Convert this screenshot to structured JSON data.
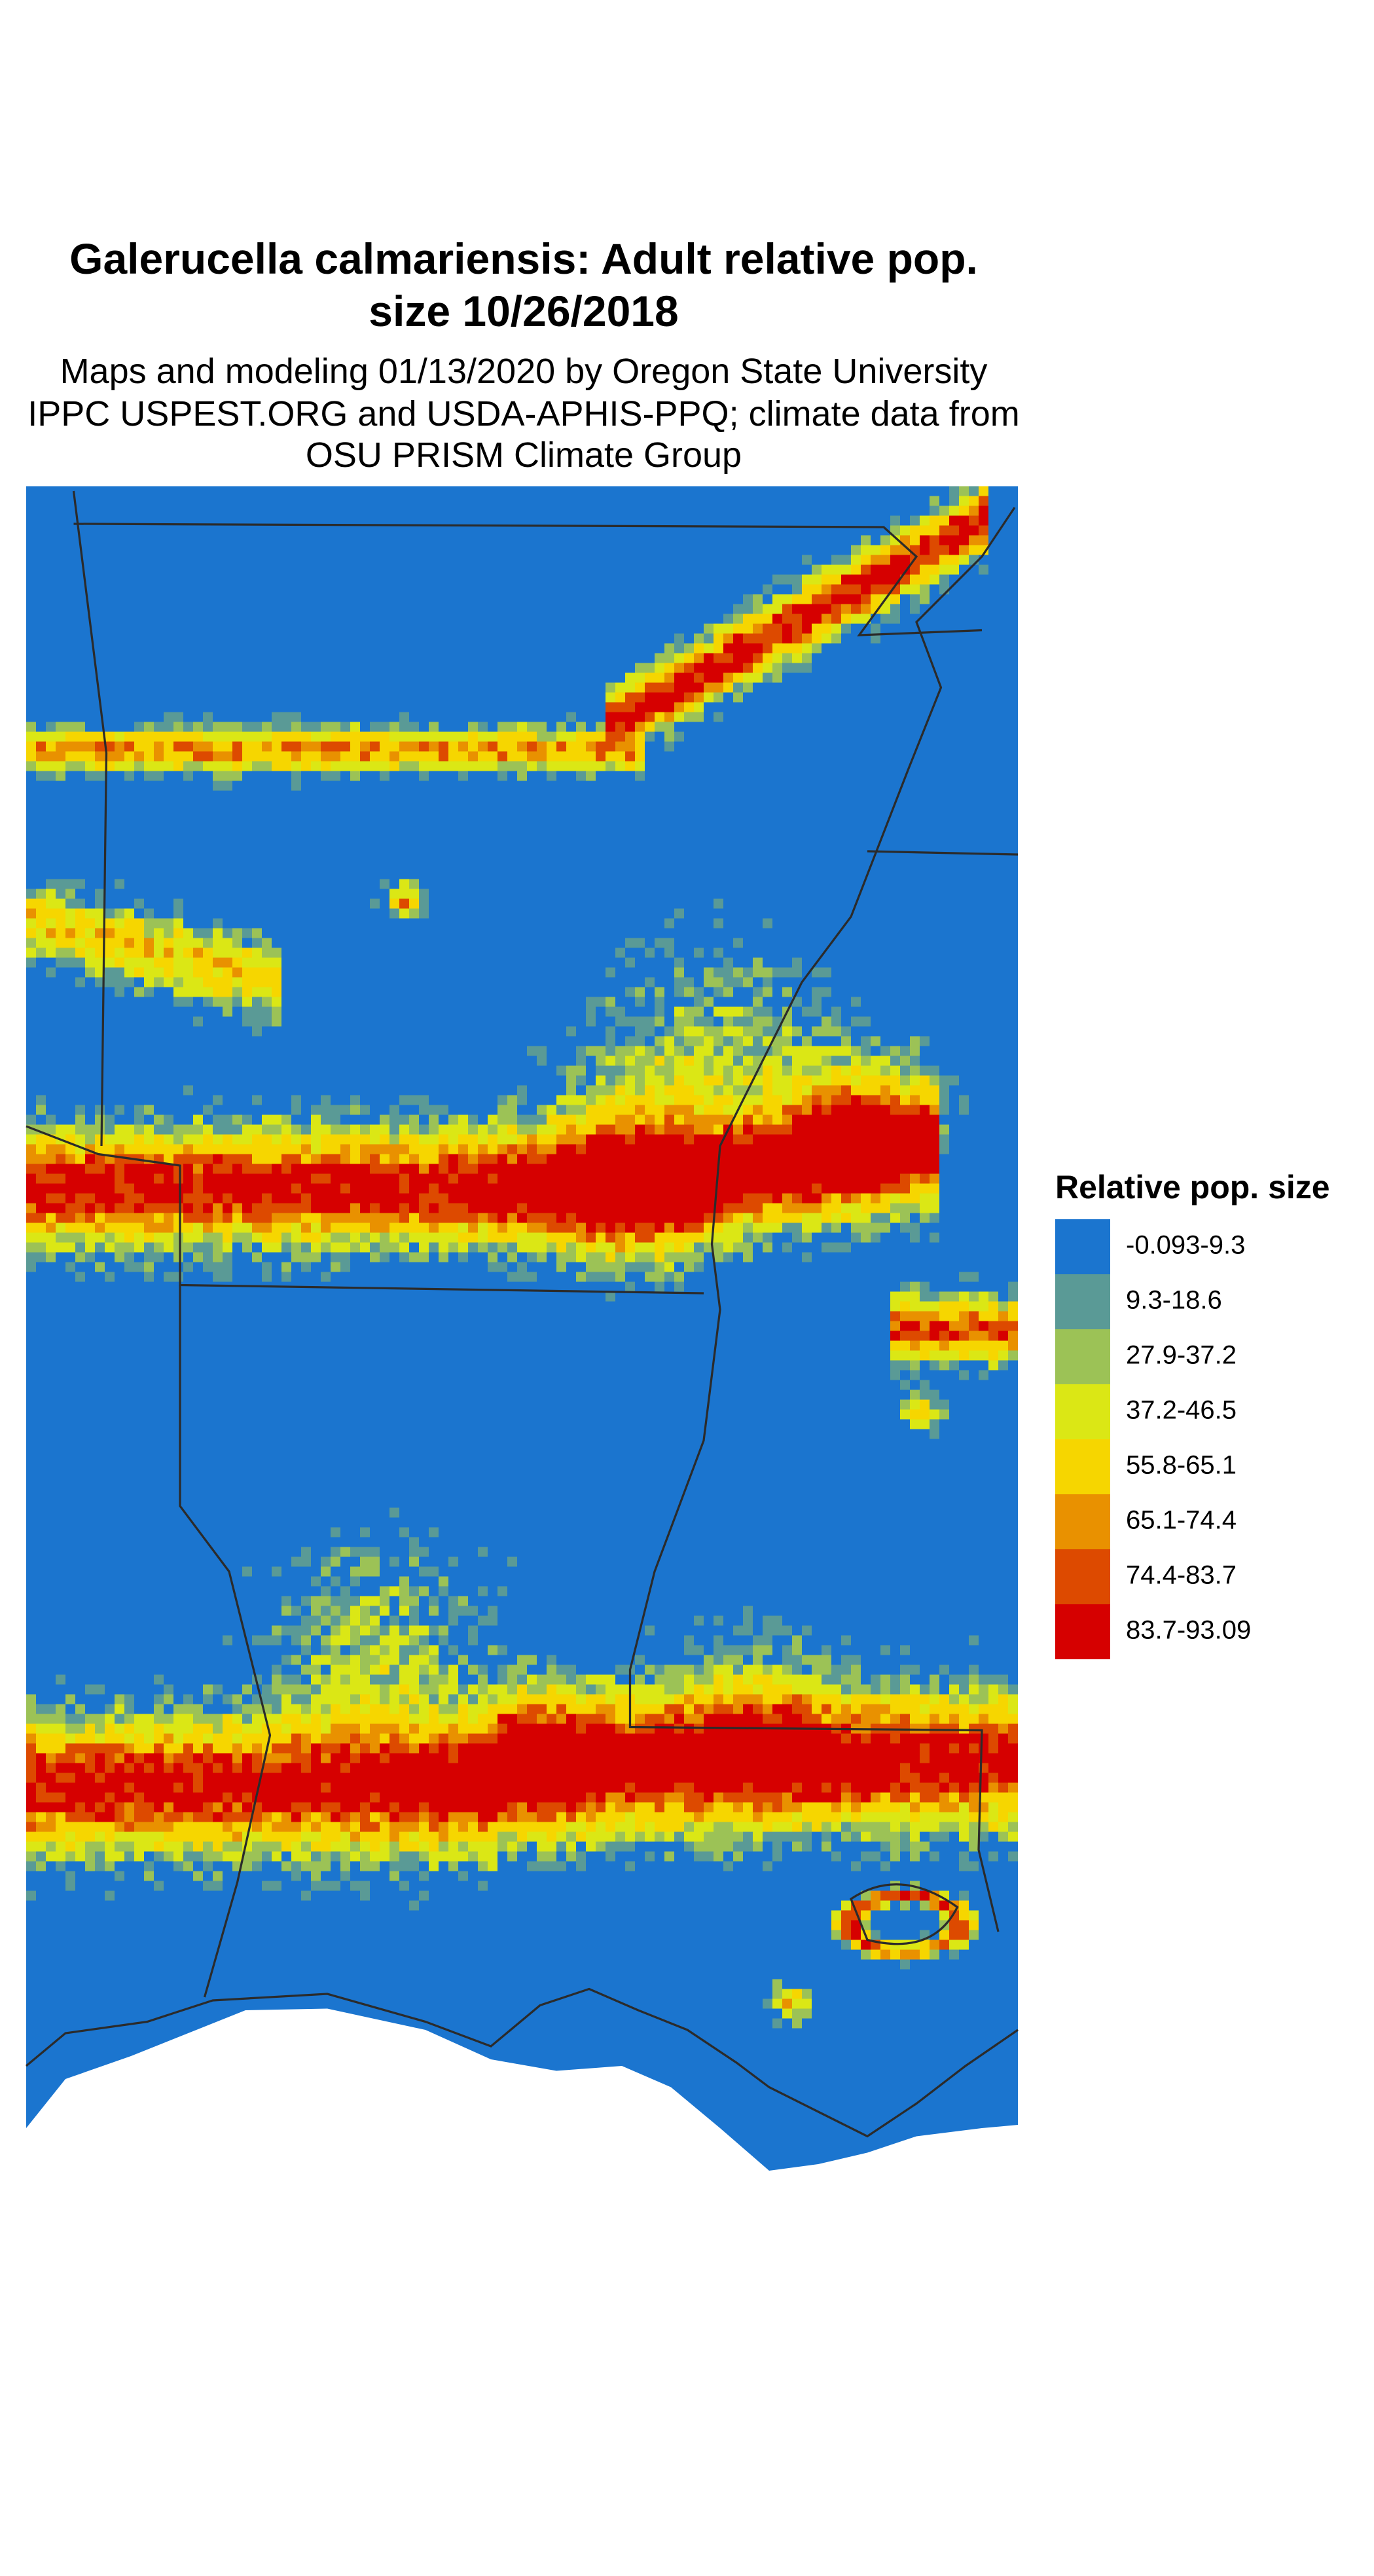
{
  "title": [
    "Galerucella calmariensis: Adult relative pop.",
    "size 10/26/2018"
  ],
  "subtitle": [
    "Maps and modeling 01/13/2020 by Oregon State University",
    "IPPC USPEST.ORG and USDA-APHIS-PPQ; climate data from",
    "OSU PRISM Climate Group"
  ],
  "legend": {
    "title": "Relative pop. size",
    "items": [
      {
        "label": "-0.093-9.3",
        "color": "#1b75cf"
      },
      {
        "label": "9.3-18.6",
        "color": "#5a9a96"
      },
      {
        "label": "27.9-37.2",
        "color": "#9cc256"
      },
      {
        "label": "37.2-46.5",
        "color": "#dbe715"
      },
      {
        "label": "55.8-65.1",
        "color": "#f6d600"
      },
      {
        "label": "65.1-74.4",
        "color": "#e99100"
      },
      {
        "label": "74.4-83.7",
        "color": "#dd4a00"
      },
      {
        "label": "83.7-93.09",
        "color": "#d60000"
      }
    ]
  }
}
